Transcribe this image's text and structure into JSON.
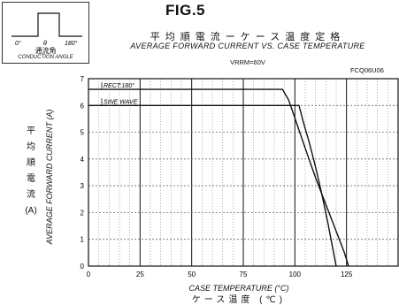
{
  "figure": {
    "label": "FIG.5",
    "title_jp": "平均順電流ーケース温度定格",
    "title_en": "AVERAGE FORWARD CURRENT VS. CASE TEMPERATURE",
    "condition": "VRRM=60V",
    "part_number": "FCQ06U06"
  },
  "inset": {
    "label_left": "0°",
    "label_theta": "θ",
    "label_right": "180°",
    "label_jp": "通流角",
    "label_en": "CONDUCTION ANGLE"
  },
  "chart_data": {
    "type": "line",
    "xlabel": "CASE TEMPERATURE (°C)",
    "xlabel_jp": "ケース温度 (℃)",
    "ylabel": "AVERAGE FORWARD CURRENT (A)",
    "ylabel_jp": [
      "平",
      "均",
      "順",
      "電",
      "流",
      "(A)"
    ],
    "xlim": [
      0,
      150
    ],
    "ylim": [
      0,
      7
    ],
    "xticks": [
      0,
      25,
      50,
      75,
      100,
      125
    ],
    "yticks": [
      0,
      1,
      2,
      3,
      4,
      5,
      6,
      7
    ],
    "grid": true,
    "series": [
      {
        "name": "RECT:180°",
        "points": [
          [
            0,
            6.6
          ],
          [
            94,
            6.6
          ],
          [
            97,
            6.2
          ],
          [
            101,
            5.3
          ],
          [
            105,
            4.4
          ],
          [
            110,
            3.3
          ],
          [
            115,
            2.3
          ],
          [
            120,
            1.3
          ],
          [
            124,
            0.5
          ],
          [
            126,
            0
          ]
        ]
      },
      {
        "name": "SINE WAVE",
        "points": [
          [
            0,
            6.0
          ],
          [
            102,
            6.0
          ],
          [
            104,
            5.4
          ],
          [
            107,
            4.6
          ],
          [
            110,
            3.7
          ],
          [
            113,
            2.7
          ],
          [
            116,
            1.6
          ],
          [
            118,
            0.8
          ],
          [
            120,
            0
          ]
        ]
      }
    ]
  }
}
